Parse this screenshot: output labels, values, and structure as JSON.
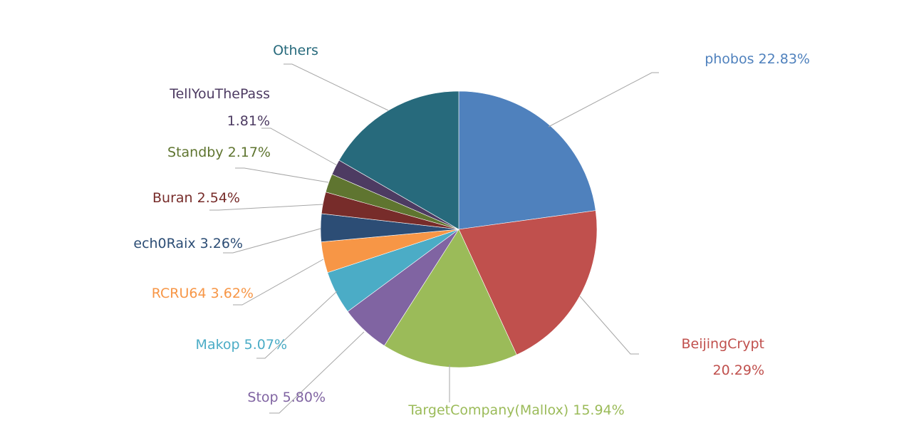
{
  "chart_data": {
    "type": "pie",
    "slices": [
      {
        "label": "phobos",
        "value": 22.83,
        "value_text": "22.83%",
        "color": "#4F81BD"
      },
      {
        "label": "BeijingCrypt",
        "value": 20.29,
        "value_text": "20.29%",
        "color": "#C0504D"
      },
      {
        "label": "TargetCompany(Mallox)",
        "value": 15.94,
        "value_text": "15.94%",
        "color": "#9BBB59"
      },
      {
        "label": "Stop",
        "value": 5.8,
        "value_text": "5.80%",
        "color": "#8064A2"
      },
      {
        "label": "Makop",
        "value": 5.07,
        "value_text": "5.07%",
        "color": "#4BACC6"
      },
      {
        "label": "RCRU64",
        "value": 3.62,
        "value_text": "3.62%",
        "color": "#F79646"
      },
      {
        "label": "ech0Raix",
        "value": 3.26,
        "value_text": "3.26%",
        "color": "#2C4D75"
      },
      {
        "label": "Buran",
        "value": 2.54,
        "value_text": "2.54%",
        "color": "#772C2A"
      },
      {
        "label": "Standby",
        "value": 2.17,
        "value_text": "2.17%",
        "color": "#5F7530"
      },
      {
        "label": "TellYouThePass",
        "value": 1.81,
        "value_text": "1.81%",
        "color": "#4D3B62"
      },
      {
        "label": "Others",
        "value": 16.67,
        "value_text": "",
        "color": "#276A7C"
      }
    ]
  }
}
